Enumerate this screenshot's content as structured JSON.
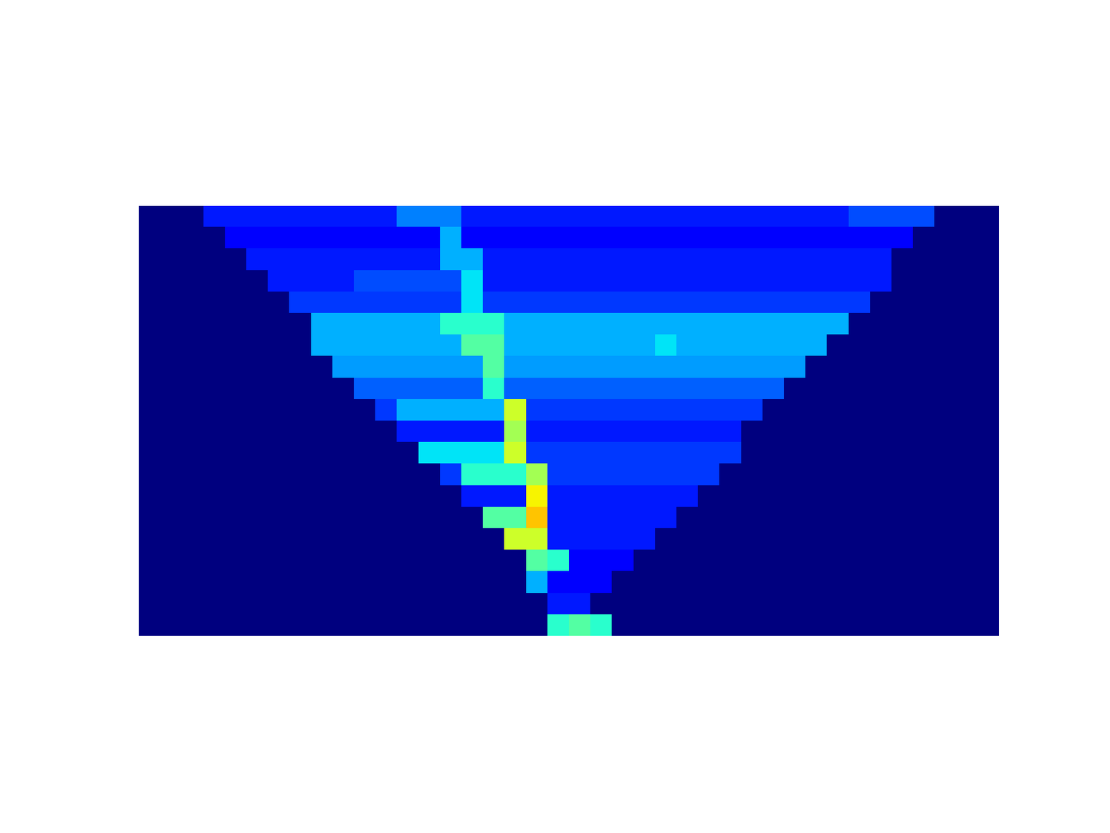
{
  "chart_data": {
    "type": "heatmap",
    "color": "jet",
    "tick_labels": false,
    "color_range": [
      0,
      1
    ],
    "cells": [
      [
        0,
        0,
        0,
        0.15,
        0.15,
        0.15,
        0.15,
        0.15,
        0.15,
        0.15,
        0.15,
        0.15,
        0.25,
        0.25,
        0.25,
        0.15,
        0.15,
        0.15,
        0.15,
        0.15,
        0.15,
        0.15,
        0.15,
        0.15,
        0.15,
        0.15,
        0.15,
        0.15,
        0.15,
        0.15,
        0.15,
        0.15,
        0.15,
        0.2,
        0.2,
        0.2,
        0.2,
        0,
        0,
        0
      ],
      [
        0,
        0,
        0,
        0,
        0.12,
        0.12,
        0.12,
        0.12,
        0.12,
        0.12,
        0.12,
        0.12,
        0.12,
        0.12,
        0.3,
        0.12,
        0.12,
        0.12,
        0.12,
        0.12,
        0.12,
        0.12,
        0.12,
        0.12,
        0.12,
        0.12,
        0.12,
        0.12,
        0.12,
        0.12,
        0.12,
        0.12,
        0.12,
        0.12,
        0.12,
        0.12,
        0,
        0,
        0,
        0
      ],
      [
        0,
        0,
        0,
        0,
        0,
        0.15,
        0.15,
        0.15,
        0.15,
        0.15,
        0.15,
        0.15,
        0.15,
        0.15,
        0.3,
        0.3,
        0.15,
        0.15,
        0.15,
        0.15,
        0.15,
        0.15,
        0.15,
        0.15,
        0.15,
        0.15,
        0.15,
        0.15,
        0.15,
        0.15,
        0.15,
        0.15,
        0.15,
        0.15,
        0.15,
        0,
        0,
        0,
        0,
        0
      ],
      [
        0,
        0,
        0,
        0,
        0,
        0,
        0.15,
        0.15,
        0.15,
        0.15,
        0.2,
        0.2,
        0.2,
        0.2,
        0.2,
        0.35,
        0.15,
        0.15,
        0.15,
        0.15,
        0.15,
        0.15,
        0.15,
        0.15,
        0.15,
        0.15,
        0.15,
        0.15,
        0.15,
        0.15,
        0.15,
        0.15,
        0.15,
        0.15,
        0.15,
        0,
        0,
        0,
        0,
        0
      ],
      [
        0,
        0,
        0,
        0,
        0,
        0,
        0,
        0.18,
        0.18,
        0.18,
        0.18,
        0.18,
        0.18,
        0.18,
        0.18,
        0.35,
        0.18,
        0.18,
        0.18,
        0.18,
        0.18,
        0.18,
        0.18,
        0.18,
        0.18,
        0.18,
        0.18,
        0.18,
        0.18,
        0.18,
        0.18,
        0.18,
        0.18,
        0.18,
        0,
        0,
        0,
        0,
        0,
        0
      ],
      [
        0,
        0,
        0,
        0,
        0,
        0,
        0,
        0,
        0.3,
        0.3,
        0.3,
        0.3,
        0.3,
        0.3,
        0.4,
        0.4,
        0.4,
        0.3,
        0.3,
        0.3,
        0.3,
        0.3,
        0.3,
        0.3,
        0.3,
        0.3,
        0.3,
        0.3,
        0.3,
        0.3,
        0.3,
        0.3,
        0.3,
        0,
        0,
        0,
        0,
        0,
        0,
        0
      ],
      [
        0,
        0,
        0,
        0,
        0,
        0,
        0,
        0,
        0.3,
        0.3,
        0.3,
        0.3,
        0.3,
        0.3,
        0.3,
        0.45,
        0.45,
        0.3,
        0.3,
        0.3,
        0.3,
        0.3,
        0.3,
        0.3,
        0.35,
        0.3,
        0.3,
        0.3,
        0.3,
        0.3,
        0.3,
        0.3,
        0,
        0,
        0,
        0,
        0,
        0,
        0,
        0
      ],
      [
        0,
        0,
        0,
        0,
        0,
        0,
        0,
        0,
        0,
        0.28,
        0.28,
        0.28,
        0.28,
        0.28,
        0.28,
        0.28,
        0.45,
        0.28,
        0.28,
        0.28,
        0.28,
        0.28,
        0.28,
        0.28,
        0.28,
        0.28,
        0.28,
        0.28,
        0.28,
        0.28,
        0.28,
        0,
        0,
        0,
        0,
        0,
        0,
        0,
        0,
        0
      ],
      [
        0,
        0,
        0,
        0,
        0,
        0,
        0,
        0,
        0,
        0,
        0.22,
        0.22,
        0.22,
        0.22,
        0.22,
        0.22,
        0.4,
        0.22,
        0.22,
        0.22,
        0.22,
        0.22,
        0.22,
        0.22,
        0.22,
        0.22,
        0.22,
        0.22,
        0.22,
        0.22,
        0,
        0,
        0,
        0,
        0,
        0,
        0,
        0,
        0,
        0
      ],
      [
        0,
        0,
        0,
        0,
        0,
        0,
        0,
        0,
        0,
        0,
        0,
        0.18,
        0.3,
        0.3,
        0.3,
        0.3,
        0.3,
        0.6,
        0.18,
        0.18,
        0.18,
        0.18,
        0.18,
        0.18,
        0.18,
        0.18,
        0.18,
        0.18,
        0.18,
        0,
        0,
        0,
        0,
        0,
        0,
        0,
        0,
        0,
        0,
        0
      ],
      [
        0,
        0,
        0,
        0,
        0,
        0,
        0,
        0,
        0,
        0,
        0,
        0,
        0.15,
        0.15,
        0.15,
        0.15,
        0.15,
        0.55,
        0.15,
        0.15,
        0.15,
        0.15,
        0.15,
        0.15,
        0.15,
        0.15,
        0.15,
        0.15,
        0,
        0,
        0,
        0,
        0,
        0,
        0,
        0,
        0,
        0,
        0,
        0
      ],
      [
        0,
        0,
        0,
        0,
        0,
        0,
        0,
        0,
        0,
        0,
        0,
        0,
        0,
        0.35,
        0.35,
        0.35,
        0.35,
        0.6,
        0.18,
        0.18,
        0.18,
        0.18,
        0.18,
        0.18,
        0.18,
        0.18,
        0.18,
        0.18,
        0,
        0,
        0,
        0,
        0,
        0,
        0,
        0,
        0,
        0,
        0,
        0
      ],
      [
        0,
        0,
        0,
        0,
        0,
        0,
        0,
        0,
        0,
        0,
        0,
        0,
        0,
        0,
        0.18,
        0.4,
        0.4,
        0.4,
        0.55,
        0.18,
        0.18,
        0.18,
        0.18,
        0.18,
        0.18,
        0.18,
        0.18,
        0,
        0,
        0,
        0,
        0,
        0,
        0,
        0,
        0,
        0,
        0,
        0,
        0
      ],
      [
        0,
        0,
        0,
        0,
        0,
        0,
        0,
        0,
        0,
        0,
        0,
        0,
        0,
        0,
        0,
        0.15,
        0.15,
        0.15,
        0.65,
        0.15,
        0.15,
        0.15,
        0.15,
        0.15,
        0.15,
        0.15,
        0,
        0,
        0,
        0,
        0,
        0,
        0,
        0,
        0,
        0,
        0,
        0,
        0,
        0
      ],
      [
        0,
        0,
        0,
        0,
        0,
        0,
        0,
        0,
        0,
        0,
        0,
        0,
        0,
        0,
        0,
        0,
        0.45,
        0.45,
        0.7,
        0.15,
        0.15,
        0.15,
        0.15,
        0.15,
        0.15,
        0,
        0,
        0,
        0,
        0,
        0,
        0,
        0,
        0,
        0,
        0,
        0,
        0,
        0,
        0
      ],
      [
        0,
        0,
        0,
        0,
        0,
        0,
        0,
        0,
        0,
        0,
        0,
        0,
        0,
        0,
        0,
        0,
        0,
        0.6,
        0.6,
        0.15,
        0.15,
        0.15,
        0.15,
        0.15,
        0,
        0,
        0,
        0,
        0,
        0,
        0,
        0,
        0,
        0,
        0,
        0,
        0,
        0,
        0,
        0
      ],
      [
        0,
        0,
        0,
        0,
        0,
        0,
        0,
        0,
        0,
        0,
        0,
        0,
        0,
        0,
        0,
        0,
        0,
        0,
        0.45,
        0.4,
        0.12,
        0.12,
        0.12,
        0,
        0,
        0,
        0,
        0,
        0,
        0,
        0,
        0,
        0,
        0,
        0,
        0,
        0,
        0,
        0,
        0
      ],
      [
        0,
        0,
        0,
        0,
        0,
        0,
        0,
        0,
        0,
        0,
        0,
        0,
        0,
        0,
        0,
        0,
        0,
        0,
        0.3,
        0.12,
        0.12,
        0.12,
        0,
        0,
        0,
        0,
        0,
        0,
        0,
        0,
        0,
        0,
        0,
        0,
        0,
        0,
        0,
        0,
        0,
        0
      ],
      [
        0,
        0,
        0,
        0,
        0,
        0,
        0,
        0,
        0,
        0,
        0,
        0,
        0,
        0,
        0,
        0,
        0,
        0,
        0,
        0.15,
        0.15,
        0,
        0,
        0,
        0,
        0,
        0,
        0,
        0,
        0,
        0,
        0,
        0,
        0,
        0,
        0,
        0,
        0,
        0,
        0
      ],
      [
        0,
        0,
        0,
        0,
        0,
        0,
        0,
        0,
        0,
        0,
        0,
        0,
        0,
        0,
        0,
        0,
        0,
        0,
        0,
        0.4,
        0.45,
        0.4,
        0,
        0,
        0,
        0,
        0,
        0,
        0,
        0,
        0,
        0,
        0,
        0,
        0,
        0,
        0,
        0,
        0,
        0
      ]
    ]
  }
}
